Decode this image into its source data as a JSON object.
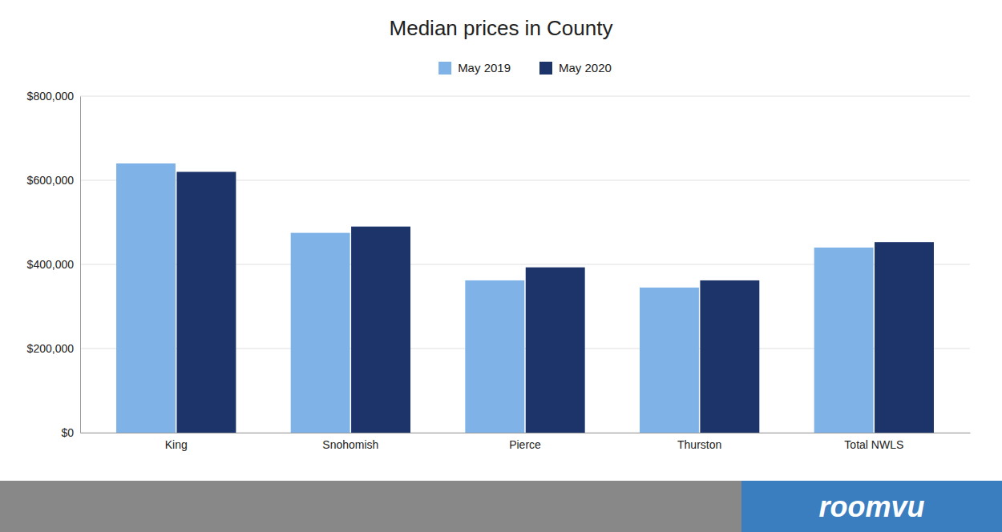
{
  "chart_data": {
    "type": "bar",
    "title": "Median prices in County",
    "categories": [
      "King",
      "Snohomish",
      "Pierce",
      "Thurston",
      "Total NWLS"
    ],
    "series": [
      {
        "name": "May 2019",
        "color": "#7fb3e8",
        "values": [
          640000,
          475000,
          362000,
          345000,
          440000
        ]
      },
      {
        "name": "May 2020",
        "color": "#1c3469",
        "values": [
          620000,
          490000,
          393000,
          362000,
          453000
        ]
      }
    ],
    "ylim": [
      0,
      800000
    ],
    "yticks": [
      {
        "value": 0,
        "label": "$0"
      },
      {
        "value": 200000,
        "label": "$200,000"
      },
      {
        "value": 400000,
        "label": "$400,000"
      },
      {
        "value": 600000,
        "label": "$600,000"
      },
      {
        "value": 800000,
        "label": "$800,000"
      }
    ],
    "grid": true,
    "legend": "top",
    "annotations": [
      {
        "text": "roomvu"
      }
    ]
  }
}
